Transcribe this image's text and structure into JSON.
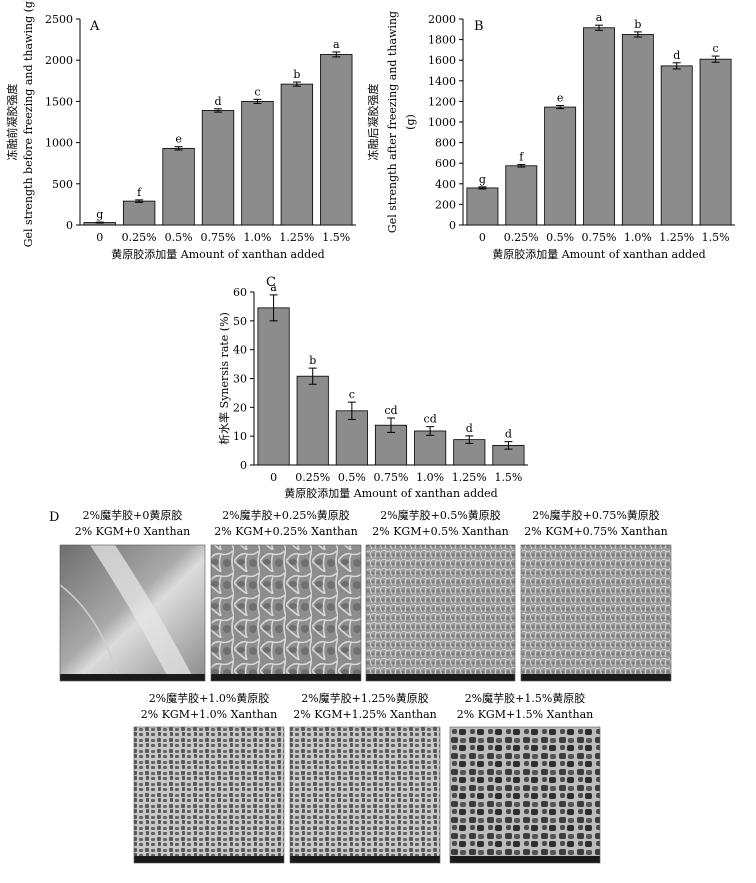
{
  "chart_data": [
    {
      "panel": "A",
      "type": "bar",
      "categories": [
        "0",
        "0.25%",
        "0.5%",
        "0.75%",
        "1.0%",
        "1.25%",
        "1.5%"
      ],
      "values": [
        30,
        290,
        930,
        1390,
        1500,
        1710,
        2070
      ],
      "errors": [
        5,
        15,
        20,
        20,
        25,
        25,
        30
      ],
      "significance": [
        "g",
        "f",
        "e",
        "d",
        "c",
        "b",
        "a"
      ],
      "xlabel": "黄原胶添加量 Amount of xanthan added",
      "ylabel": [
        "冻融前凝胶强度",
        "Gel strength before freezing and thawing (g)"
      ],
      "ylim": [
        0,
        2500
      ],
      "yticks": [
        0,
        500,
        1000,
        1500,
        2000,
        2500
      ],
      "bar_color": "#8c8c8c"
    },
    {
      "panel": "B",
      "type": "bar",
      "categories": [
        "0",
        "0.25%",
        "0.5%",
        "0.75%",
        "1.0%",
        "1.25%",
        "1.5%"
      ],
      "values": [
        360,
        575,
        1145,
        1915,
        1850,
        1545,
        1610
      ],
      "errors": [
        10,
        12,
        15,
        25,
        25,
        30,
        30
      ],
      "significance": [
        "g",
        "f",
        "e",
        "a",
        "b",
        "d",
        "c"
      ],
      "xlabel": "黄原胶添加量 Amount of xanthan added",
      "ylabel": [
        "冻融后凝胶强度",
        "Gel strength after freezing and thawing",
        "(g)"
      ],
      "ylim": [
        0,
        2000
      ],
      "yticks": [
        0,
        200,
        400,
        600,
        800,
        1000,
        1200,
        1400,
        1600,
        1800,
        2000
      ],
      "bar_color": "#8c8c8c"
    },
    {
      "panel": "C",
      "type": "bar",
      "categories": [
        "0",
        "0.25%",
        "0.5%",
        "0.75%",
        "1.0%",
        "1.25%",
        "1.5%"
      ],
      "values": [
        54.5,
        30.8,
        18.8,
        13.8,
        11.8,
        8.8,
        6.8
      ],
      "errors": [
        4.5,
        2.8,
        3.0,
        2.5,
        1.5,
        1.3,
        1.3
      ],
      "significance": [
        "a",
        "b",
        "c",
        "cd",
        "cd",
        "d",
        "d"
      ],
      "xlabel": "黄原胶添加量 Amount of xanthan added",
      "ylabel": [
        "析水率 Synersis rate (%)"
      ],
      "ylim": [
        0,
        60
      ],
      "yticks": [
        0,
        10,
        20,
        30,
        40,
        50,
        60
      ],
      "bar_color": "#8c8c8c"
    }
  ],
  "panel_d": {
    "letter": "D",
    "images": [
      {
        "cn": "2%魔芋胶+0黄原胶",
        "en": "2% KGM+0 Xanthan",
        "style": "smooth-icon"
      },
      {
        "cn": "2%魔芋胶+0.25%黄原胶",
        "en": "2% KGM+0.25% Xanthan",
        "style": "network-coarse"
      },
      {
        "cn": "2%魔芋胶+0.5%黄原胶",
        "en": "2% KGM+0.5% Xanthan",
        "style": "network-fine"
      },
      {
        "cn": "2%魔芋胶+0.75%黄原胶",
        "en": "2% KGM+0.75% Xanthan",
        "style": "network-fine"
      },
      {
        "cn": "2%魔芋胶+1.0%黄原胶",
        "en": "2% KGM+1.0% Xanthan",
        "style": "pores"
      },
      {
        "cn": "2%魔芋胶+1.25%黄原胶",
        "en": "2% KGM+1.25% Xanthan",
        "style": "pores"
      },
      {
        "cn": "2%魔芋胶+1.5%黄原胶",
        "en": "2% KGM+1.5% Xanthan",
        "style": "pores-large"
      }
    ]
  }
}
